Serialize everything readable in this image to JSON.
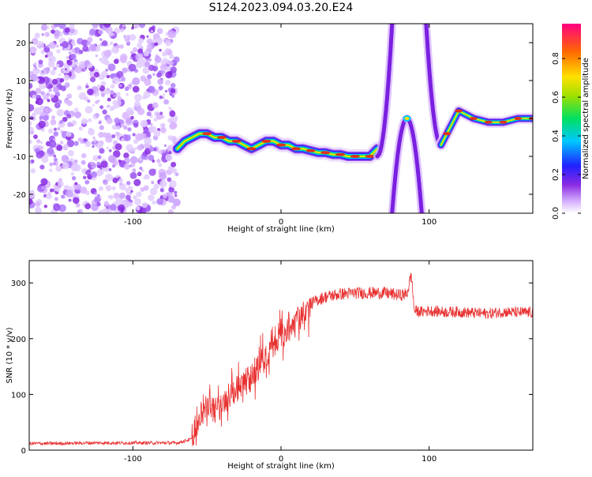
{
  "title": "S124.2023.094.03.20.E24",
  "chart_data": [
    {
      "type": "heatmap",
      "xlabel": "Height of straight line (km)",
      "ylabel": "Frequency (Hz)",
      "xlim": [
        -170,
        170
      ],
      "ylim": [
        -25,
        25
      ],
      "xticks": [
        -100,
        0,
        100
      ],
      "yticks": [
        -20,
        -10,
        0,
        10,
        20
      ],
      "noise_region_x": [
        -170,
        -70
      ],
      "ridge": {
        "name": "",
        "x": [
          -70,
          -65,
          -60,
          -55,
          -50,
          -45,
          -40,
          -35,
          -30,
          -25,
          -20,
          -15,
          -10,
          -5,
          0,
          5,
          10,
          15,
          20,
          25,
          30,
          35,
          40,
          45,
          50,
          55,
          60,
          65
        ],
        "y": [
          -8,
          -6,
          -5,
          -4,
          -4,
          -5,
          -5,
          -6,
          -6,
          -7,
          -8,
          -7,
          -6,
          -6,
          -7,
          -7,
          -8,
          -8,
          -8.5,
          -9,
          -9,
          -9.5,
          -9.5,
          -10,
          -10,
          -10,
          -10,
          -8
        ]
      },
      "colorbar": {
        "label": "Normalized spectral amplitude",
        "ticks": [
          "0.0",
          "0.2",
          "0.4",
          "0.6",
          "0.8"
        ]
      }
    },
    {
      "type": "line",
      "xlabel": "Height of straight line (km)",
      "ylabel": "SNR (10 * v/v)",
      "xlim": [
        -170,
        170
      ],
      "ylim": [
        0,
        340
      ],
      "xticks": [
        -100,
        0,
        100
      ],
      "yticks": [
        0,
        100,
        200,
        300
      ],
      "color": "#e83030",
      "series": [
        {
          "name": "",
          "x": [
            -170,
            -150,
            -130,
            -110,
            -90,
            -70,
            -60,
            -55,
            -50,
            -45,
            -40,
            -35,
            -30,
            -25,
            -20,
            -15,
            -10,
            -5,
            0,
            5,
            10,
            15,
            20,
            25,
            30,
            40,
            50,
            60,
            70,
            80,
            85,
            88,
            90,
            95,
            100,
            110,
            120,
            130,
            140,
            150,
            160,
            170
          ],
          "y": [
            12,
            12,
            13,
            13,
            13,
            13,
            20,
            60,
            80,
            70,
            80,
            95,
            110,
            120,
            135,
            150,
            165,
            185,
            200,
            215,
            235,
            250,
            262,
            270,
            275,
            280,
            282,
            282,
            282,
            278,
            280,
            315,
            250,
            248,
            250,
            248,
            248,
            246,
            245,
            248,
            247,
            247
          ]
        }
      ]
    }
  ]
}
